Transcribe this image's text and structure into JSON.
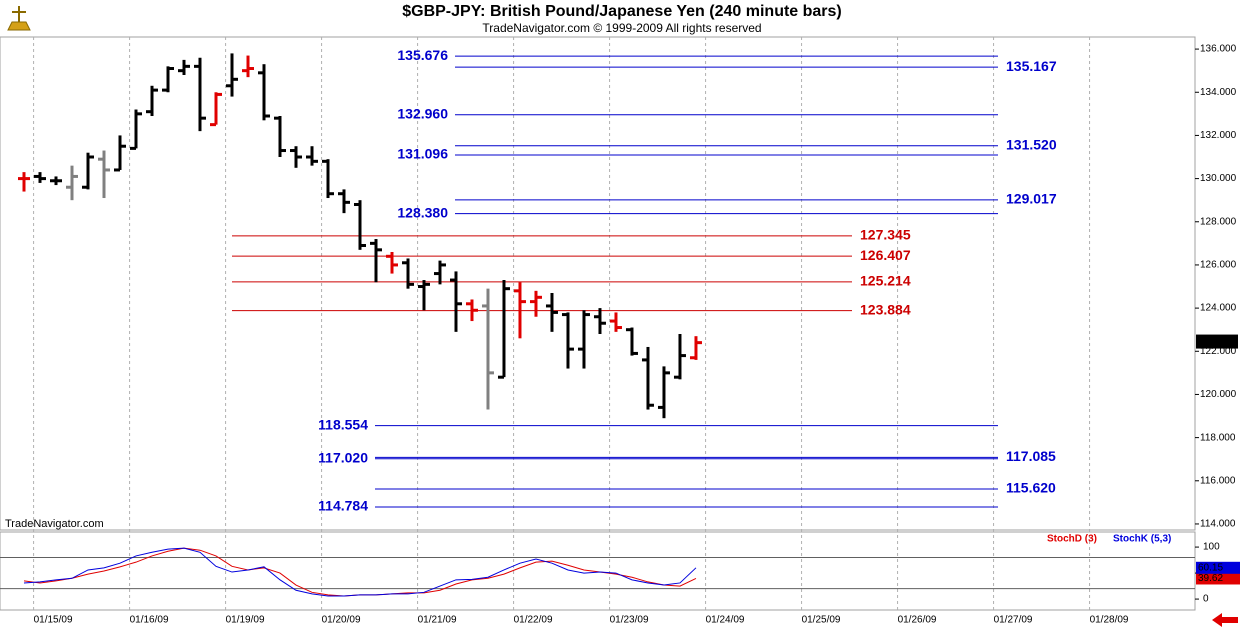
{
  "chart_data": [
    {
      "type": "ohlc",
      "title": "$GBP-JPY:  British Pound/Japanese Yen  (240 minute bars)",
      "subtitle": "TradeNavigator.com © 1999-2009 All rights reserved",
      "watermark": "TradeNavigator.com",
      "open": [
        130.0,
        130.1,
        129.9,
        129.6,
        129.6,
        130.9,
        130.4,
        131.4,
        133.1,
        134.1,
        135.0,
        135.2,
        132.5,
        134.3,
        135.0,
        134.9,
        132.8,
        131.3,
        131.0,
        130.8,
        129.3,
        128.8,
        127.0,
        126.4,
        126.1,
        125.0,
        125.6,
        125.3,
        124.2,
        124.1,
        120.8,
        124.8,
        124.3,
        124.1,
        123.7,
        122.1,
        123.6,
        123.4,
        123.0,
        121.6,
        119.4,
        120.8,
        121.7
      ],
      "high": [
        130.3,
        130.3,
        130.1,
        130.6,
        131.2,
        131.3,
        132.0,
        133.2,
        134.3,
        135.2,
        135.5,
        135.6,
        134.0,
        135.8,
        135.7,
        135.3,
        132.9,
        131.5,
        131.5,
        130.9,
        129.5,
        129.0,
        127.2,
        126.6,
        126.3,
        125.3,
        126.2,
        125.7,
        124.4,
        124.9,
        125.3,
        125.2,
        124.8,
        124.7,
        123.8,
        123.9,
        124.0,
        123.8,
        123.1,
        122.2,
        121.3,
        122.8,
        122.7
      ],
      "low": [
        129.4,
        129.8,
        129.7,
        129.0,
        129.5,
        129.1,
        130.4,
        131.4,
        132.9,
        134.0,
        134.8,
        132.2,
        132.5,
        133.8,
        134.7,
        132.7,
        131.0,
        130.5,
        130.6,
        129.1,
        128.4,
        126.7,
        125.2,
        125.6,
        124.9,
        123.9,
        125.1,
        122.9,
        123.4,
        119.3,
        120.8,
        122.6,
        123.6,
        122.9,
        121.2,
        121.2,
        122.8,
        122.9,
        121.8,
        119.3,
        118.9,
        120.7,
        121.6
      ],
      "close": [
        130.0,
        130.0,
        129.9,
        130.1,
        131.0,
        130.4,
        131.5,
        133.0,
        134.1,
        135.1,
        135.2,
        132.8,
        133.9,
        134.6,
        135.1,
        132.9,
        131.3,
        131.0,
        130.8,
        129.3,
        128.9,
        126.9,
        126.7,
        126.0,
        125.1,
        125.1,
        126.0,
        124.2,
        123.9,
        121.0,
        124.9,
        124.3,
        124.5,
        123.8,
        122.1,
        123.7,
        123.3,
        123.1,
        121.9,
        119.5,
        121.0,
        121.8,
        122.4
      ],
      "bar_colors": [
        "#e00000",
        "#000000",
        "#000000",
        "#808080",
        "#000000",
        "#808080",
        "#000000",
        "#000000",
        "#000000",
        "#000000",
        "#000000",
        "#000000",
        "#e00000",
        "#000000",
        "#e00000",
        "#000000",
        "#000000",
        "#000000",
        "#000000",
        "#000000",
        "#000000",
        "#000000",
        "#000000",
        "#e00000",
        "#000000",
        "#000000",
        "#000000",
        "#000000",
        "#e00000",
        "#808080",
        "#000000",
        "#e00000",
        "#e00000",
        "#000000",
        "#000000",
        "#000000",
        "#000000",
        "#e00000",
        "#000000",
        "#000000",
        "#000000",
        "#000000",
        "#e00000"
      ],
      "ylim": [
        113.72,
        136.56
      ],
      "yticks": [
        {
          "value": 114,
          "label": "114.000"
        },
        {
          "value": 116,
          "label": "116.000"
        },
        {
          "value": 118,
          "label": "118.000"
        },
        {
          "value": 120,
          "label": "120.000"
        },
        {
          "value": 122,
          "label": "122.000"
        },
        {
          "value": 124,
          "label": "124.000"
        },
        {
          "value": 126,
          "label": "126.000"
        },
        {
          "value": 128,
          "label": "128.000"
        },
        {
          "value": 130,
          "label": "130.000"
        },
        {
          "value": 132,
          "label": "132.000"
        },
        {
          "value": 134,
          "label": "134.000"
        },
        {
          "value": 136,
          "label": "136.000"
        }
      ],
      "xlim": [
        -1.5,
        73.19
      ],
      "xticks": [
        {
          "value": 0.6,
          "label": "01/15/09"
        },
        {
          "value": 6.6,
          "label": "01/16/09"
        },
        {
          "value": 12.6,
          "label": "01/19/09"
        },
        {
          "value": 18.6,
          "label": "01/20/09"
        },
        {
          "value": 24.6,
          "label": "01/21/09"
        },
        {
          "value": 30.6,
          "label": "01/22/09"
        },
        {
          "value": 36.6,
          "label": "01/23/09"
        },
        {
          "value": 42.6,
          "label": "01/24/09"
        },
        {
          "value": 48.6,
          "label": "01/25/09"
        },
        {
          "value": 54.6,
          "label": "01/26/09"
        },
        {
          "value": 60.6,
          "label": "01/27/09"
        },
        {
          "value": 66.6,
          "label": "01/28/09"
        }
      ],
      "last_price": {
        "value": 122.45,
        "label": "122.450"
      },
      "levels": [
        {
          "value": 135.676,
          "label": "135.676",
          "color": "#0000cc",
          "label_side": "left"
        },
        {
          "value": 135.167,
          "label": "135.167",
          "color": "#0000cc",
          "label_side": "right"
        },
        {
          "value": 132.96,
          "label": "132.960",
          "color": "#0000cc",
          "label_side": "left"
        },
        {
          "value": 131.52,
          "label": "131.520",
          "color": "#0000cc",
          "label_side": "right"
        },
        {
          "value": 131.096,
          "label": "131.096",
          "color": "#0000cc",
          "label_side": "left"
        },
        {
          "value": 129.017,
          "label": "129.017",
          "color": "#0000cc",
          "label_side": "right"
        },
        {
          "value": 128.38,
          "label": "128.380",
          "color": "#0000cc",
          "label_side": "left"
        },
        {
          "value": 127.345,
          "label": "127.345",
          "color": "#cc0000",
          "label_side": "right"
        },
        {
          "value": 126.407,
          "label": "126.407",
          "color": "#cc0000",
          "label_side": "right"
        },
        {
          "value": 125.214,
          "label": "125.214",
          "color": "#cc0000",
          "label_side": "right"
        },
        {
          "value": 123.884,
          "label": "123.884",
          "color": "#cc0000",
          "label_side": "right"
        },
        {
          "value": 118.554,
          "label": "118.554",
          "color": "#0000cc",
          "label_side": "left"
        },
        {
          "value": 117.085,
          "label": "117.085",
          "color": "#0000cc",
          "label_side": "right"
        },
        {
          "value": 117.02,
          "label": "117.020",
          "color": "#0000cc",
          "label_side": "left"
        },
        {
          "value": 115.62,
          "label": "115.620",
          "color": "#0000cc",
          "label_side": "right"
        },
        {
          "value": 114.784,
          "label": "114.784",
          "color": "#0000cc",
          "label_side": "left"
        }
      ]
    },
    {
      "type": "line",
      "ylim": [
        -21,
        129
      ],
      "yticks": [
        0,
        50,
        100
      ],
      "hlines": [
        20,
        80
      ],
      "series": [
        {
          "name": "StochD (3)",
          "color": "#e00000",
          "values": [
            35,
            31,
            35,
            40,
            48,
            54,
            62,
            71,
            83,
            92,
            98,
            94,
            83,
            63,
            56,
            60,
            50,
            27,
            13,
            8,
            6,
            8,
            8,
            10,
            12,
            12,
            17,
            29,
            37,
            40,
            48,
            60,
            71,
            73,
            65,
            56,
            52,
            48,
            42,
            33,
            27,
            25,
            39.62
          ]
        },
        {
          "name": "StochK (5,3)",
          "color": "#0000dd",
          "values": [
            31,
            33,
            37,
            40,
            56,
            60,
            69,
            83,
            90,
            96,
            98,
            90,
            63,
            52,
            56,
            62,
            37,
            17,
            10,
            6,
            6,
            8,
            8,
            10,
            10,
            13,
            25,
            37,
            38,
            42,
            56,
            69,
            77,
            69,
            56,
            50,
            52,
            50,
            37,
            31,
            27,
            31,
            60.15
          ]
        }
      ]
    }
  ]
}
